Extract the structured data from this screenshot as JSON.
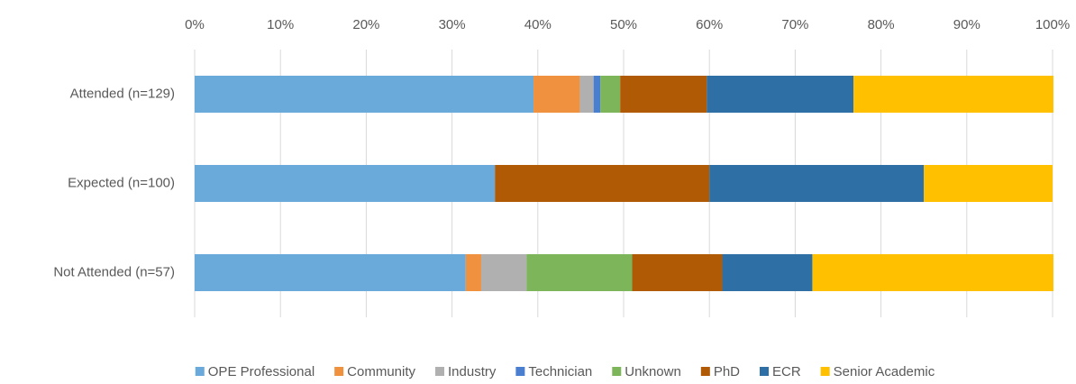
{
  "chart_data": {
    "type": "stacked-bar-horizontal",
    "categories": [
      "Attended (n=129)",
      "Expected (n=100)",
      "Not Attended (n=57)"
    ],
    "series": [
      {
        "name": "OPE Professional",
        "color": "#6aaadb",
        "values": [
          39.5,
          35,
          31.6
        ]
      },
      {
        "name": "Community",
        "color": "#f0913f",
        "values": [
          5.4,
          0,
          1.8
        ]
      },
      {
        "name": "Industry",
        "color": "#b0b0b0",
        "values": [
          1.6,
          0,
          5.3
        ]
      },
      {
        "name": "Technician",
        "color": "#4a7fd0",
        "values": [
          0.8,
          0,
          0
        ]
      },
      {
        "name": "Unknown",
        "color": "#7db65a",
        "values": [
          2.3,
          0,
          12.3
        ]
      },
      {
        "name": "PhD",
        "color": "#b05a06",
        "values": [
          10.1,
          25,
          10.5
        ]
      },
      {
        "name": "ECR",
        "color": "#2e6fa5",
        "values": [
          17.1,
          25,
          10.5
        ]
      },
      {
        "name": "Senior Academic",
        "color": "#ffc000",
        "values": [
          23.3,
          15,
          28.1
        ]
      }
    ],
    "xlim": [
      0,
      100
    ],
    "xticks": [
      {
        "value": 0,
        "label": "0%"
      },
      {
        "value": 10,
        "label": "10%"
      },
      {
        "value": 20,
        "label": "20%"
      },
      {
        "value": 30,
        "label": "30%"
      },
      {
        "value": 40,
        "label": "40%"
      },
      {
        "value": 50,
        "label": "50%"
      },
      {
        "value": 60,
        "label": "60%"
      },
      {
        "value": 70,
        "label": "70%"
      },
      {
        "value": 80,
        "label": "80%"
      },
      {
        "value": 90,
        "label": "90%"
      },
      {
        "value": 100,
        "label": "100%"
      }
    ],
    "grid": true,
    "legend": "bottom"
  }
}
